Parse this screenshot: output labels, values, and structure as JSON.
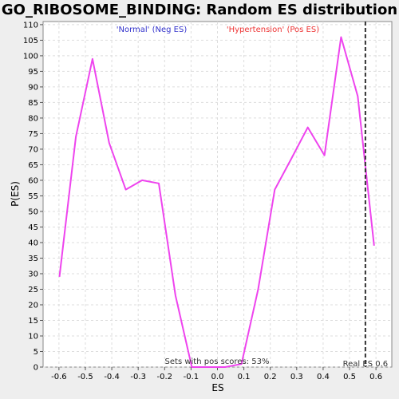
{
  "chart_data": {
    "type": "line",
    "title": "GO_RIBOSOME_BINDING: Random ES distribution",
    "xlabel": "ES",
    "ylabel": "P(ES)",
    "xlim": [
      -0.66,
      0.66
    ],
    "ylim": [
      0,
      111
    ],
    "x_ticks": [
      -0.6,
      -0.5,
      -0.4,
      -0.3,
      -0.2,
      -0.1,
      0.0,
      0.1,
      0.2,
      0.3,
      0.4,
      0.5,
      0.6
    ],
    "x_tick_labels": [
      "-0.6",
      "-0.5",
      "-0.4",
      "-0.3",
      "-0.2",
      "-0.1",
      "0.0",
      "0.1",
      "0.2",
      "0.3",
      "0.4",
      "0.5",
      "0.6"
    ],
    "y_ticks": [
      0,
      5,
      10,
      15,
      20,
      25,
      30,
      35,
      40,
      45,
      50,
      55,
      60,
      65,
      70,
      75,
      80,
      85,
      90,
      95,
      100,
      105,
      110
    ],
    "y_tick_labels": [
      "0",
      "5",
      "10",
      "15",
      "20",
      "25",
      "30",
      "35",
      "40",
      "45",
      "50",
      "55",
      "60",
      "65",
      "70",
      "75",
      "80",
      "85",
      "90",
      "95",
      "100",
      "105",
      "110"
    ],
    "grid": true,
    "series": [
      {
        "color": "#ee44ee",
        "x": [
          -0.598,
          -0.536,
          -0.473,
          -0.41,
          -0.347,
          -0.285,
          -0.222,
          -0.159,
          -0.097,
          -0.034,
          0.029,
          0.091,
          0.154,
          0.217,
          0.28,
          0.342,
          0.405,
          0.468,
          0.531,
          0.593
        ],
        "y": [
          29,
          74,
          99,
          72,
          57,
          60,
          59,
          23,
          0,
          0,
          0,
          1,
          25,
          57,
          67,
          77,
          68,
          106,
          87,
          39
        ]
      }
    ],
    "real_es": {
      "x": 0.56,
      "label": "Real ES 0.6",
      "color": "#333333"
    },
    "legend": {
      "placement": "top",
      "neg_label": "'Normal' (Neg ES)",
      "neg_color": "#3333cc",
      "pos_label": "'Hypertension' (Pos ES)",
      "pos_color": "#ee3333"
    },
    "annotation": "Sets with pos scores: 53%"
  }
}
